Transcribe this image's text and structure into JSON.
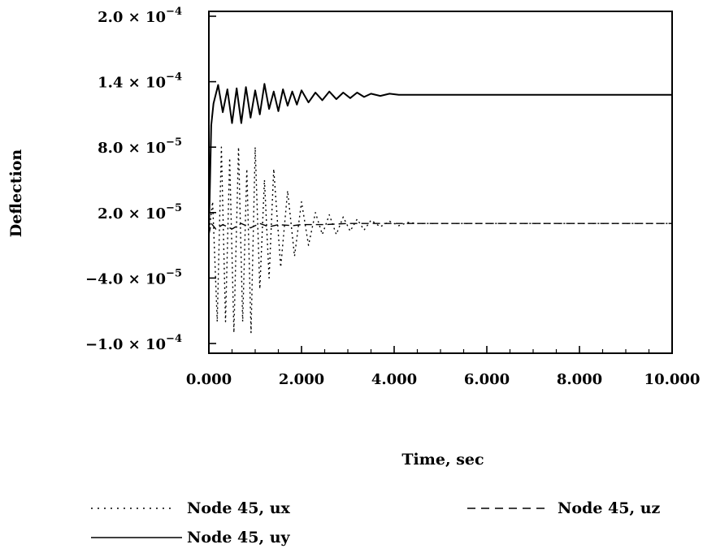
{
  "chart_data": {
    "type": "line",
    "xlabel": "Time, sec",
    "ylabel": "Deflection",
    "xlim": [
      0,
      10
    ],
    "ylim": [
      -0.0001,
      0.0002
    ],
    "x_ticks": [
      "0.000",
      "2.000",
      "4.000",
      "6.000",
      "8.000",
      "10.000"
    ],
    "y_ticks": [
      {
        "mantissa": "2.0",
        "exponent": "−4"
      },
      {
        "mantissa": "1.4",
        "exponent": "−4"
      },
      {
        "mantissa": "8.0",
        "exponent": "−5"
      },
      {
        "mantissa": "2.0",
        "exponent": "−5"
      },
      {
        "mantissa": "−4.0",
        "exponent": "−5"
      },
      {
        "mantissa": "−1.0",
        "exponent": "−4"
      }
    ],
    "grid": false,
    "legend_position": "bottom",
    "series": [
      {
        "name": "Node 45, ux",
        "style": "dotted",
        "x": [
          0.0,
          0.08,
          0.18,
          0.27,
          0.36,
          0.45,
          0.54,
          0.64,
          0.73,
          0.82,
          0.91,
          1.0,
          1.1,
          1.2,
          1.3,
          1.4,
          1.55,
          1.7,
          1.85,
          2.0,
          2.15,
          2.3,
          2.45,
          2.6,
          2.75,
          2.9,
          3.05,
          3.2,
          3.35,
          3.5,
          3.7,
          3.9,
          4.1,
          4.3,
          4.5,
          5.0,
          6.0,
          7.0,
          8.0,
          9.0,
          10.0
        ],
        "y": [
          0.0,
          3e-05,
          -8e-05,
          8e-05,
          -8e-05,
          7e-05,
          -9e-05,
          8e-05,
          -8e-05,
          6e-05,
          -9e-05,
          8e-05,
          -5e-05,
          5e-05,
          -4e-05,
          6e-05,
          -3e-05,
          4e-05,
          -2e-05,
          3e-05,
          -1e-05,
          2e-05,
          0.0,
          1.8e-05,
          0.0,
          1.6e-05,
          3e-06,
          1.4e-05,
          4e-06,
          1.3e-05,
          7e-06,
          1.2e-05,
          8e-06,
          1.1e-05,
          1e-05,
          1e-05,
          1e-05,
          1e-05,
          1e-05,
          1e-05,
          1e-05
        ]
      },
      {
        "name": "Node 45, uz",
        "style": "dashed",
        "x": [
          0.0,
          0.05,
          0.15,
          0.3,
          0.5,
          0.7,
          0.9,
          1.1,
          1.3,
          1.5,
          1.8,
          2.0,
          2.5,
          3.0,
          4.0,
          5.0,
          6.0,
          7.0,
          8.0,
          9.0,
          10.0
        ],
        "y": [
          0.0,
          1e-05,
          5e-06,
          9e-06,
          5e-06,
          1e-05,
          6e-06,
          1e-05,
          7e-06,
          9e-06,
          8e-06,
          9e-06,
          9e-06,
          1e-05,
          1e-05,
          1e-05,
          1e-05,
          1e-05,
          1e-05,
          1e-05,
          1e-05
        ]
      },
      {
        "name": "Node 45, uy",
        "style": "solid",
        "x": [
          0.0,
          0.05,
          0.1,
          0.2,
          0.3,
          0.4,
          0.5,
          0.6,
          0.7,
          0.8,
          0.9,
          1.0,
          1.1,
          1.2,
          1.3,
          1.4,
          1.5,
          1.6,
          1.7,
          1.8,
          1.9,
          2.0,
          2.15,
          2.3,
          2.45,
          2.6,
          2.75,
          2.9,
          3.05,
          3.2,
          3.35,
          3.5,
          3.7,
          3.9,
          4.1,
          4.3,
          4.5,
          5.0,
          6.0,
          7.0,
          8.0,
          9.0,
          10.0
        ],
        "y": [
          0.0,
          0.0001,
          0.00012,
          0.000137,
          0.000112,
          0.000133,
          0.000102,
          0.000134,
          0.000102,
          0.000135,
          0.000107,
          0.000132,
          0.00011,
          0.000138,
          0.000115,
          0.000131,
          0.000113,
          0.000133,
          0.000118,
          0.000131,
          0.000119,
          0.000132,
          0.000121,
          0.00013,
          0.000123,
          0.000131,
          0.000124,
          0.00013,
          0.000125,
          0.00013,
          0.000126,
          0.000129,
          0.000127,
          0.000129,
          0.000128,
          0.000128,
          0.000128,
          0.000128,
          0.000128,
          0.000128,
          0.000128,
          0.000128,
          0.000128
        ]
      }
    ]
  }
}
